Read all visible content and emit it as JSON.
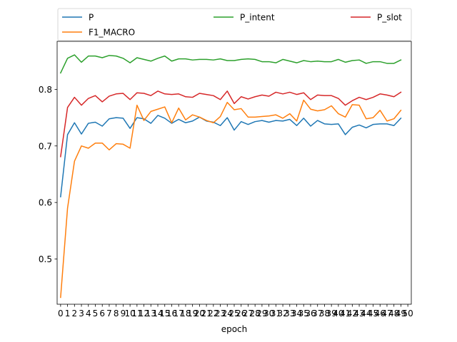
{
  "chart_data": {
    "type": "line",
    "title": "",
    "xlabel": "epoch",
    "ylabel": "",
    "grid": false,
    "legend_position": "top",
    "xlim": [
      -0.5,
      50.5
    ],
    "ylim": [
      0.42,
      0.885
    ],
    "x_ticks": [
      0,
      1,
      2,
      3,
      4,
      5,
      6,
      7,
      8,
      9,
      10,
      11,
      12,
      13,
      14,
      15,
      16,
      17,
      18,
      19,
      20,
      21,
      22,
      23,
      24,
      25,
      26,
      27,
      28,
      29,
      30,
      31,
      32,
      33,
      34,
      35,
      36,
      37,
      38,
      39,
      40,
      41,
      42,
      43,
      44,
      45,
      46,
      47,
      48,
      49,
      50
    ],
    "y_ticks": [
      0.5,
      0.6,
      0.7,
      0.8
    ],
    "y_tick_labels": [
      "0.5",
      "0.6",
      "0.7",
      "0.8"
    ],
    "series": [
      {
        "name": "P",
        "color": "#1f77b4",
        "values": [
          0.61,
          0.72,
          0.741,
          0.721,
          0.74,
          0.742,
          0.735,
          0.748,
          0.75,
          0.749,
          0.731,
          0.75,
          0.748,
          0.74,
          0.754,
          0.749,
          0.74,
          0.747,
          0.741,
          0.744,
          0.751,
          0.744,
          0.742,
          0.736,
          0.75,
          0.728,
          0.743,
          0.738,
          0.743,
          0.745,
          0.742,
          0.745,
          0.744,
          0.747,
          0.736,
          0.749,
          0.735,
          0.745,
          0.739,
          0.738,
          0.739,
          0.72,
          0.733,
          0.737,
          0.732,
          0.738,
          0.739,
          0.739,
          0.736,
          0.749
        ]
      },
      {
        "name": "F1_MACRO",
        "color": "#ff7f0e",
        "values": [
          0.432,
          0.59,
          0.673,
          0.7,
          0.696,
          0.705,
          0.705,
          0.693,
          0.704,
          0.703,
          0.696,
          0.772,
          0.745,
          0.761,
          0.765,
          0.769,
          0.741,
          0.767,
          0.746,
          0.755,
          0.751,
          0.745,
          0.741,
          0.752,
          0.777,
          0.764,
          0.766,
          0.751,
          0.751,
          0.752,
          0.753,
          0.755,
          0.749,
          0.757,
          0.744,
          0.781,
          0.765,
          0.762,
          0.764,
          0.771,
          0.757,
          0.751,
          0.773,
          0.772,
          0.748,
          0.75,
          0.763,
          0.744,
          0.748,
          0.763
        ]
      },
      {
        "name": "P_intent",
        "color": "#2ca02c",
        "values": [
          0.829,
          0.855,
          0.861,
          0.848,
          0.859,
          0.859,
          0.856,
          0.86,
          0.859,
          0.855,
          0.847,
          0.856,
          0.853,
          0.85,
          0.855,
          0.859,
          0.85,
          0.854,
          0.854,
          0.852,
          0.853,
          0.853,
          0.852,
          0.854,
          0.851,
          0.851,
          0.853,
          0.854,
          0.853,
          0.849,
          0.849,
          0.847,
          0.853,
          0.85,
          0.847,
          0.851,
          0.849,
          0.85,
          0.849,
          0.849,
          0.853,
          0.848,
          0.851,
          0.852,
          0.846,
          0.849,
          0.849,
          0.846,
          0.846,
          0.852
        ]
      },
      {
        "name": "P_slot",
        "color": "#d62728",
        "values": [
          0.681,
          0.768,
          0.786,
          0.772,
          0.784,
          0.789,
          0.778,
          0.788,
          0.792,
          0.793,
          0.782,
          0.794,
          0.793,
          0.789,
          0.797,
          0.792,
          0.791,
          0.792,
          0.787,
          0.786,
          0.793,
          0.791,
          0.789,
          0.782,
          0.797,
          0.775,
          0.787,
          0.783,
          0.787,
          0.79,
          0.788,
          0.795,
          0.792,
          0.795,
          0.791,
          0.794,
          0.782,
          0.79,
          0.789,
          0.789,
          0.784,
          0.772,
          0.78,
          0.786,
          0.782,
          0.786,
          0.792,
          0.79,
          0.787,
          0.795
        ]
      }
    ]
  }
}
